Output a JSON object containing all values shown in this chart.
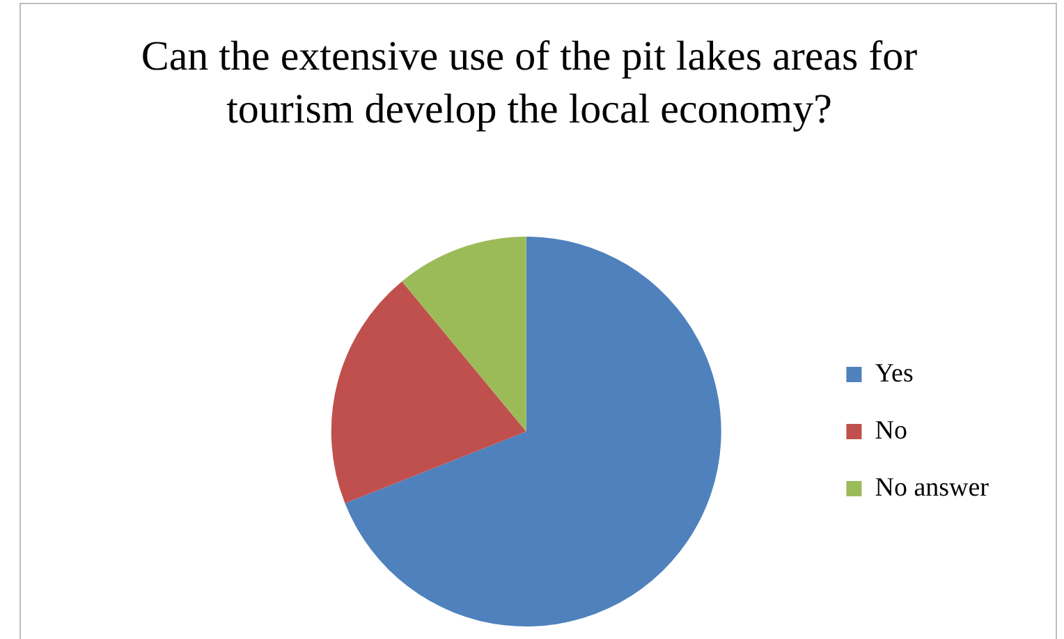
{
  "chart_data": {
    "type": "pie",
    "title": "Can the extensive use of the pit lakes areas for tourism develop the local economy?",
    "categories": [
      "Yes",
      "No",
      "No answer"
    ],
    "values": [
      69,
      20,
      11
    ],
    "colors": [
      "#4f81bd",
      "#c0504d",
      "#9bbb59"
    ],
    "legend": "right"
  }
}
